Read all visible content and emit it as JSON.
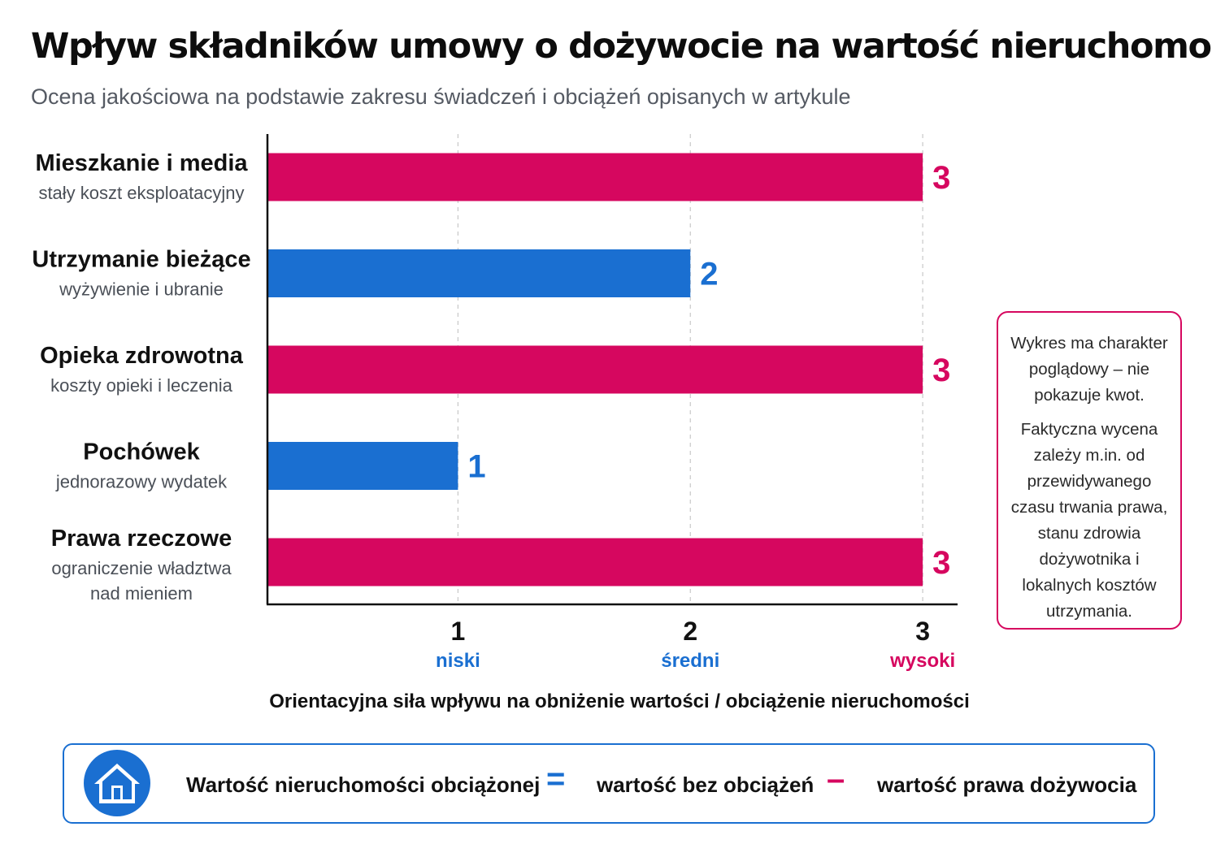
{
  "title": "Wpływ składników umowy o dożywocie na wartość nieruchomości",
  "subtitle": "Ocena jakościowa na podstawie zakresu świadczeń i obciążeń opisanych w artykule",
  "colors": {
    "high": "#d6075f",
    "medium_low": "#1a6fd1",
    "axis": "#111111",
    "grid": "#c8c8c8"
  },
  "chart_data": {
    "type": "bar",
    "orientation": "horizontal",
    "categories": [
      {
        "name": "Mieszkanie i media",
        "desc": [
          "stały koszt eksploatacyjny"
        ]
      },
      {
        "name": "Utrzymanie bieżące",
        "desc": [
          "wyżywienie i ubranie"
        ]
      },
      {
        "name": "Opieka zdrowotna",
        "desc": [
          "koszty opieki i leczenia"
        ]
      },
      {
        "name": "Pochówek",
        "desc": [
          "jednorazowy wydatek"
        ]
      },
      {
        "name": "Prawa rzeczowe",
        "desc": [
          "ograniczenie władztwa",
          "nad mieniem"
        ]
      }
    ],
    "values": [
      3,
      2,
      3,
      1,
      3
    ],
    "bar_colors": [
      "#d6075f",
      "#1a6fd1",
      "#d6075f",
      "#1a6fd1",
      "#d6075f"
    ],
    "xlim": [
      0.18,
      3.15
    ],
    "xticks": [
      {
        "value": 1,
        "label": "1",
        "word": "niski",
        "color": "#1a6fd1"
      },
      {
        "value": 2,
        "label": "2",
        "word": "średni",
        "color": "#1a6fd1"
      },
      {
        "value": 3,
        "label": "3",
        "word": "wysoki",
        "color": "#d6075f"
      }
    ],
    "xlabel": "Orientacyjna siła wpływu na obniżenie wartości / obciążenie nieruchomości",
    "ylabel": "",
    "grid": "vertical dashed"
  },
  "note": {
    "paragraph1": "Wykres ma charakter poglądowy – nie pokazuje kwot.",
    "paragraph2": "Faktyczna wycena zależy m.in. od przewidywanego czasu trwania prawa, stanu zdrowia dożywotnika i lokalnych kosztów utrzymania."
  },
  "legend": {
    "icon": "house-icon",
    "part1": "Wartość nieruchomości obciążonej",
    "op1": "=",
    "part2": "wartość bez obciążeń",
    "op2": "–",
    "part3": "wartość prawa dożywocia"
  }
}
